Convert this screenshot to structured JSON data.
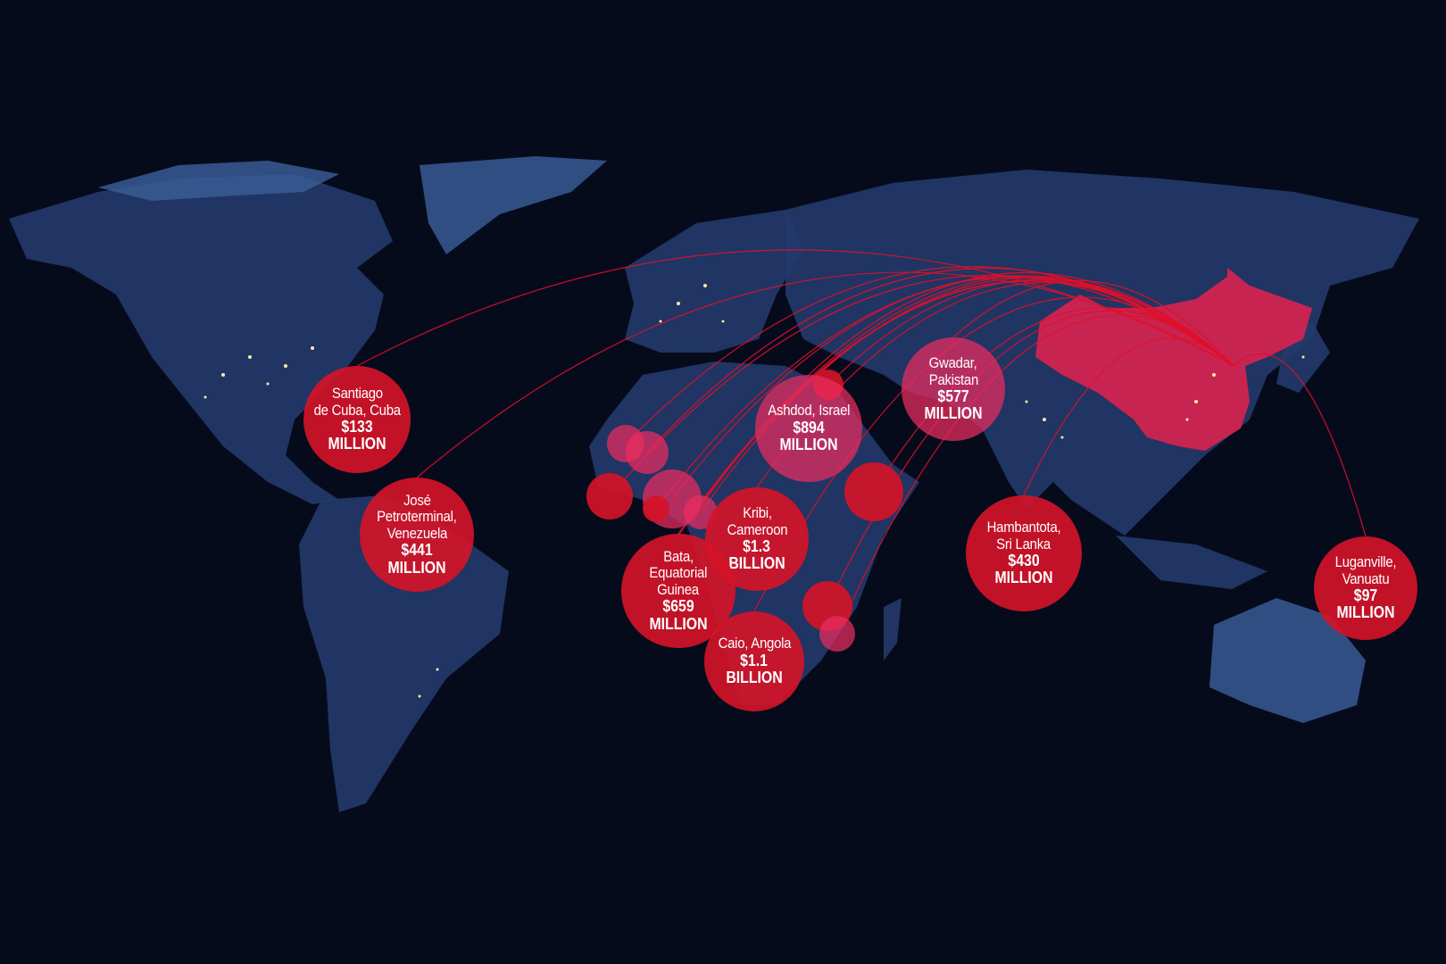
{
  "colors": {
    "background": "#060b1c",
    "land": "#243a6b",
    "china": "#e6214f",
    "bubble": "#d21428",
    "arc": "#e0102a"
  },
  "highlighted_country": "China",
  "ports": [
    {
      "place": "Santiago de Cuba, Cuba",
      "place_lines": [
        "Santiago",
        "de Cuba, Cuba"
      ],
      "amount": "$133",
      "unit": "MILLION"
    },
    {
      "place": "José Petroterminal, Venezuela",
      "place_lines": [
        "José",
        "Petroterminal,",
        "Venezuela"
      ],
      "amount": "$441",
      "unit": "MILLION"
    },
    {
      "place": "Ashdod, Israel",
      "place_lines": [
        "Ashdod, Israel"
      ],
      "amount": "$894",
      "unit": "MILLION"
    },
    {
      "place": "Gwadar, Pakistan",
      "place_lines": [
        "Gwadar,",
        "Pakistan"
      ],
      "amount": "$577",
      "unit": "MILLION"
    },
    {
      "place": "Kribi, Cameroon",
      "place_lines": [
        "Kribi,",
        "Cameroon"
      ],
      "amount": "$1.3",
      "unit": "BILLION"
    },
    {
      "place": "Bata, Equatorial Guinea",
      "place_lines": [
        "Bata,",
        "Equatorial",
        "Guinea"
      ],
      "amount": "$659",
      "unit": "MILLION"
    },
    {
      "place": "Caio, Angola",
      "place_lines": [
        "Caio, Angola"
      ],
      "amount": "$1.1",
      "unit": "BILLION"
    },
    {
      "place": "Hambantota, Sri Lanka",
      "place_lines": [
        "Hambantota,",
        "Sri Lanka"
      ],
      "amount": "$430",
      "unit": "MILLION"
    },
    {
      "place": "Luganville, Vanuatu",
      "place_lines": [
        "Luganville,",
        "Vanuatu"
      ],
      "amount": "$97",
      "unit": "MILLION"
    }
  ]
}
